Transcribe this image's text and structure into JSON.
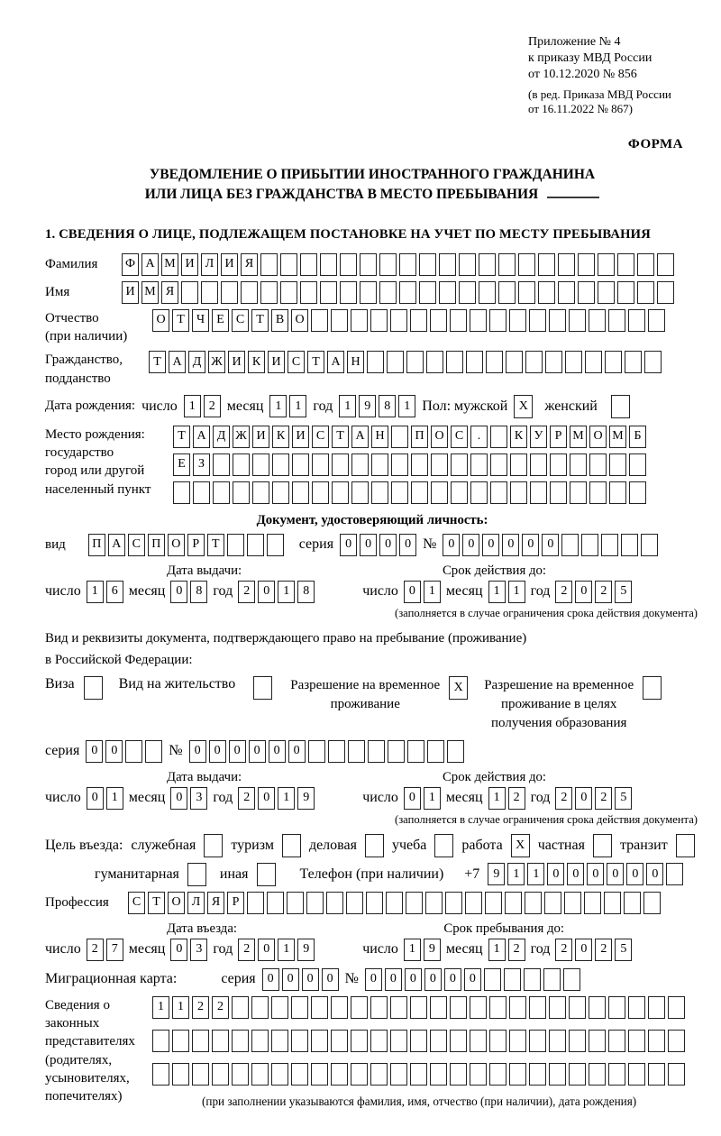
{
  "meta": {
    "appendix_line1": "Приложение № 4",
    "appendix_line2": "к приказу МВД России",
    "appendix_line3": "от 10.12.2020 № 856",
    "appendix_note1": "(в ред. Приказа МВД России",
    "appendix_note2": "от 16.11.2022 № 867)",
    "forma": "ФОРМА"
  },
  "title": {
    "line1": "УВЕДОМЛЕНИЕ О ПРИБЫТИИ ИНОСТРАННОГО ГРАЖДАНИНА",
    "line2": "ИЛИ ЛИЦА БЕЗ ГРАЖДАНСТВА В МЕСТО ПРЕБЫВАНИЯ",
    "section1": "1. СВЕДЕНИЯ О ЛИЦЕ, ПОДЛЕЖАЩЕМ ПОСТАНОВКЕ НА УЧЕТ ПО МЕСТУ ПРЕБЫВАНИЯ"
  },
  "person": {
    "surname": {
      "label": "Фамилия",
      "value": "ФАМИЛИЯ",
      "cells": 28
    },
    "firstname": {
      "label": "Имя",
      "value": "ИМЯ",
      "cells": 28
    },
    "patronymic": {
      "label_line1": "Отчество",
      "label_line2": "(при наличии)",
      "value": "ОТЧЕСТВО",
      "cells": 26
    },
    "citizenship": {
      "label_line1": "Гражданство,",
      "label_line2": "подданство",
      "value": "ТАДЖИКИСТАН",
      "cells": 26
    },
    "birth": {
      "label": "Дата рождения:",
      "day_label": "число",
      "day": {
        "value": "12",
        "cells": 2
      },
      "month_label": "месяц",
      "month": {
        "value": "11",
        "cells": 2
      },
      "year_label": "год",
      "year": {
        "value": "1981",
        "cells": 4
      },
      "sex_label": "Пол: мужской",
      "male_mark": "X",
      "female_label": "женский",
      "female_mark": ""
    },
    "birthplace": {
      "label_line1": "Место рождения:",
      "label_line2": "государство",
      "label_line3": "город или другой",
      "label_line4": "населенный пункт",
      "row1": {
        "value": "ТАДЖИКИСТАН ПОС. КУРМОМБ",
        "cells": 24
      },
      "row2": {
        "value": "ЕЗ",
        "cells": 24
      },
      "row3": {
        "value": "",
        "cells": 24
      }
    }
  },
  "identity": {
    "heading": "Документ, удостоверяющий личность:",
    "kind_label": "вид",
    "kind": {
      "value": "ПАСПОРТ",
      "cells": 10
    },
    "series_label": "серия",
    "series": {
      "value": "0000",
      "cells": 4
    },
    "number_label": "№",
    "number": {
      "value": "000000",
      "cells": 11
    },
    "issue_heading": "Дата выдачи:",
    "issue_day_label": "число",
    "issue_day": {
      "value": "16",
      "cells": 2
    },
    "issue_month_label": "месяц",
    "issue_month": {
      "value": "08",
      "cells": 2
    },
    "issue_year_label": "год",
    "issue_year": {
      "value": "2018",
      "cells": 4
    },
    "expiry_heading": "Срок действия до:",
    "expiry_day_label": "число",
    "expiry_day": {
      "value": "01",
      "cells": 2
    },
    "expiry_month_label": "месяц",
    "expiry_month": {
      "value": "11",
      "cells": 2
    },
    "expiry_year_label": "год",
    "expiry_year": {
      "value": "2025",
      "cells": 4
    },
    "note": "(заполняется в случае ограничения срока действия документа)"
  },
  "residence": {
    "intro_line1": "Вид и реквизиты документа, подтверждающего право на пребывание (проживание)",
    "intro_line2": "в Российской Федерации:",
    "visa_label": "Виза",
    "visa_mark": "",
    "permit_label": "Вид на жительство",
    "permit_mark": "",
    "temp_line1": "Разрешение на временное",
    "temp_line2": "проживание",
    "temp_mark": "X",
    "edu_line1": "Разрешение на временное",
    "edu_line2": "проживание в целях",
    "edu_line3": "получения образования",
    "edu_mark": "",
    "series_label": "серия",
    "series": {
      "value": "00",
      "cells": 4
    },
    "number_label": "№",
    "number": {
      "value": "000000",
      "cells": 14
    },
    "issue_heading": "Дата выдачи:",
    "issue_day_label": "число",
    "issue_day": {
      "value": "01",
      "cells": 2
    },
    "issue_month_label": "месяц",
    "issue_month": {
      "value": "03",
      "cells": 2
    },
    "issue_year_label": "год",
    "issue_year": {
      "value": "2019",
      "cells": 4
    },
    "expiry_heading": "Срок действия до:",
    "expiry_day_label": "число",
    "expiry_day": {
      "value": "01",
      "cells": 2
    },
    "expiry_month_label": "месяц",
    "expiry_month": {
      "value": "12",
      "cells": 2
    },
    "expiry_year_label": "год",
    "expiry_year": {
      "value": "2025",
      "cells": 4
    },
    "note": "(заполняется в случае ограничения срока действия документа)"
  },
  "purpose": {
    "label": "Цель въезда:",
    "opt1_label": "служебная",
    "opt1_mark": "",
    "opt2_label": "туризм",
    "opt2_mark": "",
    "opt3_label": "деловая",
    "opt3_mark": "",
    "opt4_label": "учеба",
    "opt4_mark": "",
    "opt5_label": "работа",
    "opt5_mark": "X",
    "opt6_label": "частная",
    "opt6_mark": "",
    "opt7_label": "транзит",
    "opt7_mark": "",
    "opt8_label": "гуманитарная",
    "opt8_mark": "",
    "opt9_label": "иная",
    "opt9_mark": "",
    "phone_label": "Телефон (при наличии)",
    "phone_prefix": "+7",
    "phone": {
      "value": "911000000",
      "cells": 10
    }
  },
  "profession": {
    "label": "Профессия",
    "value": "СТОЛЯР",
    "cells": 27
  },
  "entry": {
    "entry_heading": "Дата въезда:",
    "entry_day_label": "число",
    "entry_day": {
      "value": "27",
      "cells": 2
    },
    "entry_month_label": "месяц",
    "entry_month": {
      "value": "03",
      "cells": 2
    },
    "entry_year_label": "год",
    "entry_year": {
      "value": "2019",
      "cells": 4
    },
    "stay_heading": "Срок пребывания до:",
    "stay_day_label": "число",
    "stay_day": {
      "value": "19",
      "cells": 2
    },
    "stay_month_label": "месяц",
    "stay_month": {
      "value": "12",
      "cells": 2
    },
    "stay_year_label": "год",
    "stay_year": {
      "value": "2025",
      "cells": 4
    }
  },
  "migration_card": {
    "label": "Миграционная карта:",
    "series_label": "серия",
    "series": {
      "value": "0000",
      "cells": 4
    },
    "number_label": "№",
    "number": {
      "value": "000000",
      "cells": 11
    }
  },
  "representatives": {
    "label_line1": "Сведения о",
    "label_line2": "законных",
    "label_line3": "представителях",
    "label_line4": "(родителях,",
    "label_line5": "усыновителях,",
    "label_line6": "попечителях)",
    "row1": {
      "value": "1122",
      "cells": 27
    },
    "row2": {
      "value": "",
      "cells": 27
    },
    "row3": {
      "value": "",
      "cells": 27
    },
    "note": "(при заполнении указываются фамилия, имя, отчество (при наличии), дата рождения)"
  }
}
